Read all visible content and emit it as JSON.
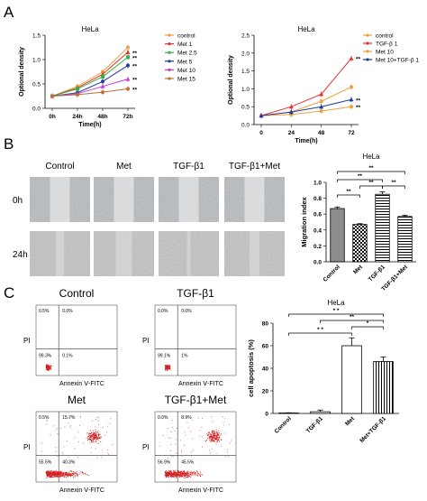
{
  "panels": {
    "a": "A",
    "b": "B",
    "c": "C"
  },
  "colors": {
    "control": "#f0a040",
    "met1": "#e53030",
    "met25": "#2fb24a",
    "met5": "#1f3c9a",
    "met10": "#c43fcf",
    "met15": "#b87333",
    "tgf": "#e53030",
    "met10b": "#f0a040",
    "combo": "#1f3c9a",
    "dots": "#d42020"
  },
  "flow_labels": {
    "titles": [
      "Control",
      "TGF-β1",
      "Met",
      "TGF-β1+Met"
    ],
    "xaxis": "Annexin Ⅴ-FITC",
    "yaxis": "PI",
    "quadrants": [
      [
        "0.5%",
        "0.0%",
        "99.3%",
        "0.1%"
      ],
      [
        "0.0%",
        "0.0%",
        "99.1%",
        "1%"
      ],
      [
        "0.5%",
        "15.7%",
        "55.5%",
        "40.3%"
      ],
      [
        "0.0%",
        "8.9%",
        "56.9%",
        "45.5%"
      ]
    ]
  },
  "scratch": {
    "columns": [
      "Control",
      "Met",
      "TGF-β1",
      "TGF-β1+Met"
    ],
    "rows": [
      "0h",
      "24h"
    ]
  },
  "chart_data": [
    {
      "type": "line",
      "title": "HeLa",
      "xlabel": "Time(h)",
      "ylabel": "Optional density",
      "categories": [
        "0h",
        "24h",
        "48h",
        "72h"
      ],
      "ylim": [
        0,
        1.5
      ],
      "yticks": [
        "0.0",
        "0.5",
        "1.0",
        "1.5"
      ],
      "legend": "right",
      "series": [
        {
          "name": "control",
          "values": [
            0.25,
            0.45,
            0.75,
            1.25
          ],
          "sig": ""
        },
        {
          "name": "Met 1",
          "values": [
            0.25,
            0.42,
            0.7,
            1.15
          ],
          "sig": "**"
        },
        {
          "name": "Met 2.5",
          "values": [
            0.25,
            0.4,
            0.65,
            1.05
          ],
          "sig": "**"
        },
        {
          "name": "Met 5",
          "values": [
            0.25,
            0.32,
            0.55,
            0.88
          ],
          "sig": "**"
        },
        {
          "name": "Met 10",
          "values": [
            0.25,
            0.3,
            0.45,
            0.6
          ],
          "sig": "**"
        },
        {
          "name": "Met 15",
          "values": [
            0.25,
            0.28,
            0.33,
            0.4
          ],
          "sig": "**"
        }
      ]
    },
    {
      "type": "line",
      "title": "HeLa",
      "xlabel": "Time(h)",
      "ylabel": "Optional density",
      "categories": [
        "0",
        "24",
        "48",
        "72"
      ],
      "ylim": [
        0,
        2.5
      ],
      "yticks": [
        "0.0",
        "0.5",
        "1.0",
        "1.5",
        "2.0",
        "2.5"
      ],
      "legend": "top-left",
      "series": [
        {
          "name": "control",
          "values": [
            0.25,
            0.35,
            0.65,
            1.05
          ],
          "sig": ""
        },
        {
          "name": "TGF-β 1",
          "values": [
            0.25,
            0.5,
            0.85,
            1.85
          ],
          "sig": "**"
        },
        {
          "name": "Met 10",
          "values": [
            0.25,
            0.28,
            0.38,
            0.5
          ],
          "sig": "**"
        },
        {
          "name": "Met 10+TGF-β 1",
          "values": [
            0.25,
            0.35,
            0.5,
            0.7
          ],
          "sig": "**"
        }
      ]
    },
    {
      "type": "bar",
      "title": "HeLa",
      "ylabel": "Migration index",
      "categories": [
        "Control",
        "Met",
        "TGF-β1",
        "TGF-β1+Met"
      ],
      "values": [
        0.67,
        0.47,
        0.85,
        0.57
      ],
      "errors": [
        0.02,
        0.01,
        0.03,
        0.015
      ],
      "ylim": [
        0,
        1.0
      ],
      "yticks": [
        "0.0",
        "0.2",
        "0.4",
        "0.6",
        "0.8",
        "1.0"
      ],
      "significance": "**"
    },
    {
      "type": "bar",
      "title": "HeLa",
      "ylabel": "cell apoptosis (%)",
      "categories": [
        "Control",
        "TGF-β1",
        "Met",
        "Met+TGF-β1"
      ],
      "values": [
        0.4,
        1.5,
        60,
        46
      ],
      "errors": [
        0.2,
        1.5,
        7,
        4
      ],
      "ylim": [
        0,
        80
      ],
      "yticks": [
        "0",
        "20",
        "40",
        "60",
        "80"
      ],
      "significance": [
        "* *",
        "**",
        "*",
        "* *"
      ]
    }
  ]
}
